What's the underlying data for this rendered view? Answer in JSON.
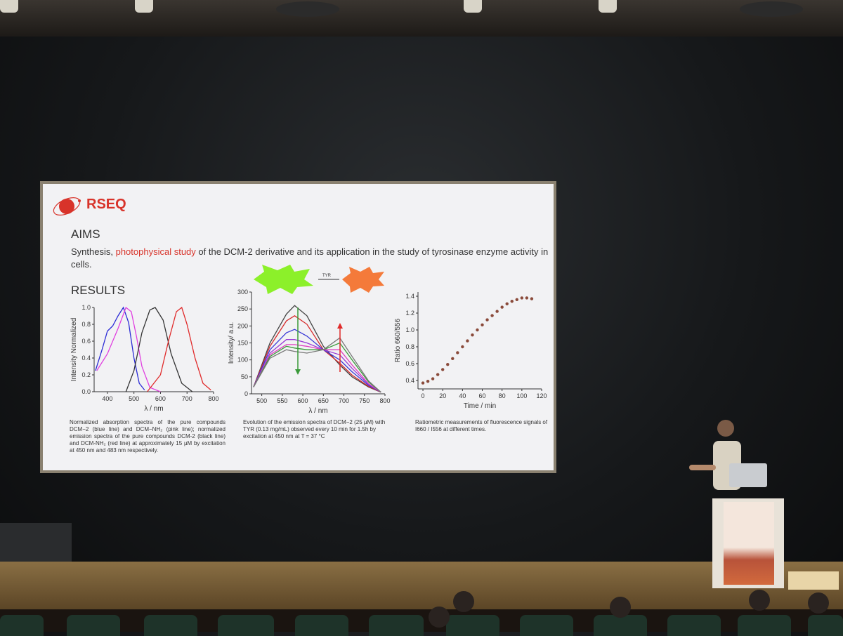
{
  "slide": {
    "logo": "RSEQ",
    "aims_heading": "AIMS",
    "aims_text_prefix": "Synthesis, ",
    "aims_highlight": "photophysical study",
    "aims_text_suffix": " of the DCM-2 derivative and its application in the study of tyrosinase enzyme activity in cells.",
    "results_heading": "RESULTS",
    "reaction_label": "TYR",
    "captions": {
      "left": "Normalized absorption spectra of the pure compounds DCM−2 (blue line) and DCM−NH₂ (pink line); normalized emission spectra of the pure compounds DCM-2 (black line) and DCM-NH₂ (red line) at approximately 15 µM by excitation at 450 nm and 483 nm respectively.",
      "middle": "Evolution of the emission spectra of DCM−2 (25 µM) with TYR (0.13 mg/mL) observed every 10 min for 1.5h by excitation at 450 nm at T = 37 °C",
      "right": "Ratiometric measurements of fluorescence signals of I660 / I556 at different times."
    }
  },
  "colors": {
    "accent": "#d8332a",
    "stage": "#8a6f44",
    "slide_bg": "#f2f2f4"
  },
  "chart_data": [
    {
      "type": "line",
      "xlabel": "λ / nm",
      "ylabel": "Intensity Normalized",
      "xlim": [
        350,
        800
      ],
      "ylim": [
        0.0,
        1.0
      ],
      "xticks": [
        "400",
        "500",
        "600",
        "700",
        "800"
      ],
      "yticks": [
        "0.0",
        "0.2",
        "0.4",
        "0.6",
        "0.8",
        "1.0"
      ],
      "series": [
        {
          "color": "#2b2bd6",
          "x": [
            355,
            380,
            400,
            420,
            440,
            460,
            480,
            500,
            520,
            540
          ],
          "y": [
            0.25,
            0.5,
            0.72,
            0.78,
            0.9,
            1.0,
            0.82,
            0.4,
            0.1,
            0.02
          ]
        },
        {
          "color": "#e040e0",
          "x": [
            360,
            400,
            440,
            470,
            490,
            510,
            530,
            560,
            600
          ],
          "y": [
            0.25,
            0.45,
            0.75,
            1.0,
            0.95,
            0.65,
            0.3,
            0.05,
            0.0
          ]
        },
        {
          "color": "#333333",
          "x": [
            470,
            500,
            530,
            560,
            580,
            610,
            640,
            680,
            720
          ],
          "y": [
            0.0,
            0.25,
            0.7,
            0.97,
            1.0,
            0.85,
            0.45,
            0.1,
            0.0
          ]
        },
        {
          "color": "#e02a2a",
          "x": [
            550,
            600,
            630,
            660,
            680,
            700,
            730,
            760,
            790
          ],
          "y": [
            0.0,
            0.2,
            0.6,
            0.95,
            1.0,
            0.8,
            0.4,
            0.1,
            0.02
          ]
        }
      ]
    },
    {
      "type": "line",
      "xlabel": "λ / nm",
      "ylabel": "Intensity/ a.u.",
      "xlim": [
        475,
        800
      ],
      "ylim": [
        0,
        300
      ],
      "xticks": [
        "500",
        "550",
        "600",
        "650",
        "700",
        "750",
        "800"
      ],
      "yticks": [
        "0",
        "50",
        "100",
        "150",
        "200",
        "250",
        "300"
      ],
      "series": [
        {
          "color": "#444444",
          "x": [
            480,
            520,
            560,
            580,
            610,
            650,
            690,
            720,
            760,
            790
          ],
          "y": [
            20,
            150,
            235,
            260,
            230,
            140,
            85,
            50,
            20,
            5
          ]
        },
        {
          "color": "#d62a2a",
          "x": [
            480,
            520,
            560,
            580,
            610,
            650,
            690,
            720,
            760,
            790
          ],
          "y": [
            20,
            140,
            215,
            230,
            205,
            130,
            90,
            55,
            22,
            5
          ]
        },
        {
          "color": "#3a3ad6",
          "x": [
            480,
            520,
            560,
            580,
            610,
            650,
            690,
            720,
            760,
            790
          ],
          "y": [
            20,
            130,
            180,
            190,
            170,
            130,
            100,
            65,
            25,
            5
          ]
        },
        {
          "color": "#9a3ad6",
          "x": [
            480,
            520,
            560,
            580,
            610,
            650,
            690,
            720,
            760,
            790
          ],
          "y": [
            20,
            120,
            160,
            160,
            150,
            130,
            115,
            75,
            28,
            5
          ]
        },
        {
          "color": "#e040c0",
          "x": [
            480,
            520,
            560,
            580,
            610,
            650,
            690,
            720,
            760,
            790
          ],
          "y": [
            20,
            115,
            145,
            145,
            140,
            130,
            130,
            85,
            30,
            5
          ]
        },
        {
          "color": "#3a9a3a",
          "x": [
            480,
            520,
            560,
            580,
            610,
            650,
            690,
            720,
            760,
            790
          ],
          "y": [
            20,
            110,
            140,
            135,
            130,
            130,
            150,
            100,
            35,
            5
          ]
        },
        {
          "color": "#777777",
          "x": [
            480,
            520,
            560,
            580,
            610,
            650,
            690,
            720,
            760,
            790
          ],
          "y": [
            20,
            105,
            130,
            125,
            120,
            130,
            165,
            110,
            38,
            5
          ]
        }
      ]
    },
    {
      "type": "scatter",
      "xlabel": "Time / min",
      "ylabel": "Ratio 660/556",
      "xlim": [
        -5,
        120
      ],
      "ylim": [
        0.3,
        1.45
      ],
      "xticks": [
        "0",
        "20",
        "40",
        "60",
        "80",
        "100",
        "120"
      ],
      "yticks": [
        "0.4",
        "0.6",
        "0.8",
        "1.0",
        "1.2",
        "1.4"
      ],
      "color": "#8a4a3a",
      "x": [
        0,
        5,
        10,
        15,
        20,
        25,
        30,
        35,
        40,
        45,
        50,
        55,
        60,
        65,
        70,
        75,
        80,
        85,
        90,
        95,
        100,
        105,
        110
      ],
      "y": [
        0.37,
        0.39,
        0.42,
        0.47,
        0.53,
        0.59,
        0.66,
        0.73,
        0.8,
        0.87,
        0.94,
        1.0,
        1.06,
        1.12,
        1.17,
        1.22,
        1.27,
        1.31,
        1.34,
        1.36,
        1.38,
        1.38,
        1.37
      ]
    }
  ]
}
